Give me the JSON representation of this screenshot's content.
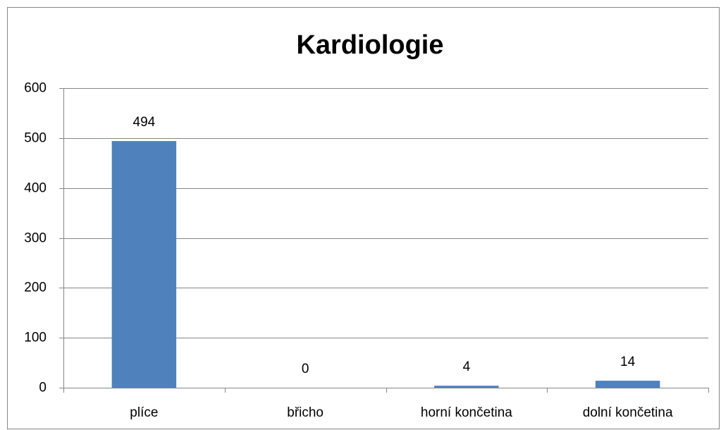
{
  "chart_data": {
    "type": "bar",
    "title": "Kardiologie",
    "categories": [
      "plíce",
      "břicho",
      "horní končetina",
      "dolní končetina"
    ],
    "values": [
      494,
      0,
      4,
      14
    ],
    "color": "#4f81bd",
    "ylim": [
      0,
      600
    ],
    "yticks": [
      0,
      100,
      200,
      300,
      400,
      500,
      600
    ],
    "grid": true
  }
}
